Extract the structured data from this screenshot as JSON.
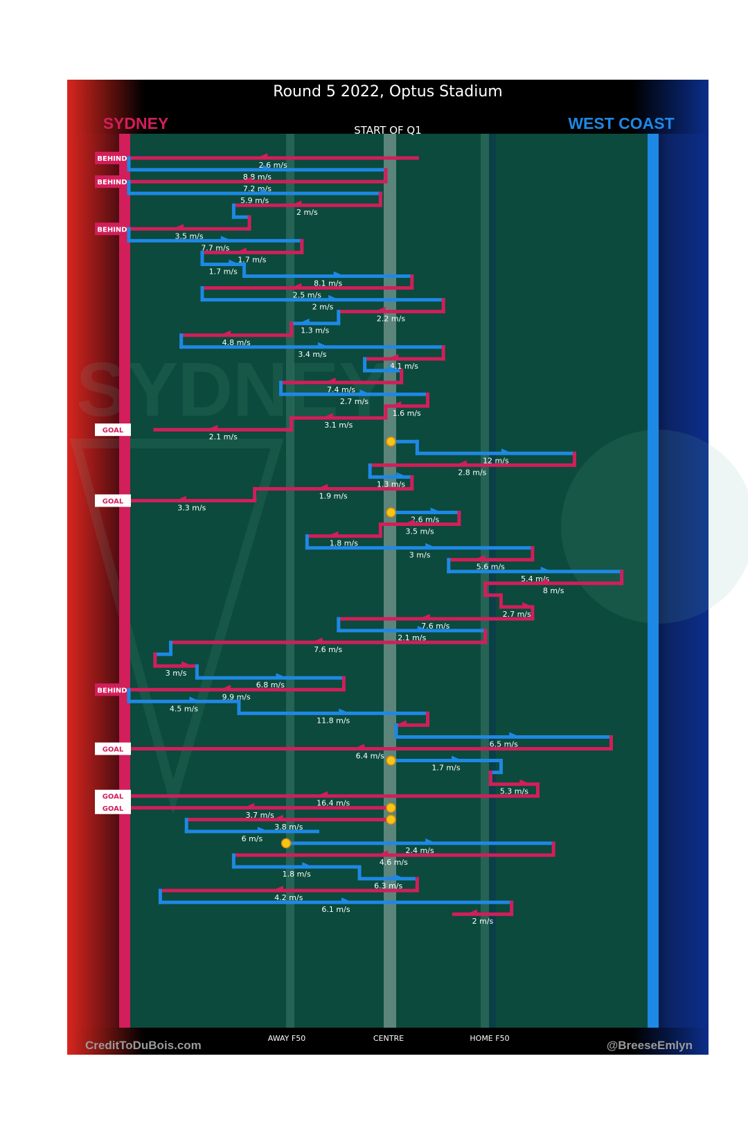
{
  "chart_data": {
    "type": "line",
    "title": "Round 5 2022, Optus Stadium",
    "subtitle": "START OF Q1",
    "teams": {
      "away": {
        "name": "SYDNEY",
        "color": "#d21e5a"
      },
      "home": {
        "name": "WEST COAST",
        "color": "#1e88e5"
      }
    },
    "axis_labels": [
      "AWAY F50",
      "CENTRE",
      "HOME F50"
    ],
    "credits": {
      "left": "CreditToDuBois.com",
      "right": "@BreeseEmlyn"
    },
    "colors": {
      "sydney": "#d21e5a",
      "westcoast": "#1e88e5",
      "field": "#0b4a3c",
      "stop": "#f5c518"
    },
    "x_domain": {
      "sydney_goal": 0,
      "west_coast_goal": 100
    },
    "chains": [
      {
        "team": "S",
        "from": 55,
        "to": 0,
        "speed": "2.6 m/s",
        "outcome": "BEHIND"
      },
      {
        "team": "W",
        "from": 0,
        "to": 49,
        "speed": "8.8 m/s"
      },
      {
        "team": "S",
        "from": 49,
        "to": 0,
        "speed": "7.2 m/s",
        "outcome": "BEHIND"
      },
      {
        "team": "W",
        "from": 0,
        "to": 48,
        "speed": "5.9 m/s"
      },
      {
        "team": "S",
        "from": 48,
        "to": 20,
        "speed": "2 m/s"
      },
      {
        "team": "W",
        "from": 20,
        "to": 23,
        "speed": ""
      },
      {
        "team": "S",
        "from": 23,
        "to": 0,
        "speed": "3.5 m/s",
        "outcome": "BEHIND"
      },
      {
        "team": "W",
        "from": 0,
        "to": 33,
        "speed": "7.7 m/s"
      },
      {
        "team": "S",
        "from": 33,
        "to": 14,
        "speed": "1.7 m/s"
      },
      {
        "team": "W",
        "from": 14,
        "to": 22,
        "speed": "1.7 m/s"
      },
      {
        "team": "W",
        "from": 22,
        "to": 54,
        "speed": "8.1 m/s"
      },
      {
        "team": "S",
        "from": 54,
        "to": 14,
        "speed": "2.5 m/s"
      },
      {
        "team": "W",
        "from": 14,
        "to": 60,
        "speed": "2 m/s"
      },
      {
        "team": "S",
        "from": 60,
        "to": 40,
        "speed": "2.2 m/s"
      },
      {
        "team": "W",
        "from": 40,
        "to": 31,
        "speed": "1.3 m/s"
      },
      {
        "team": "S",
        "from": 31,
        "to": 10,
        "speed": "4.8 m/s"
      },
      {
        "team": "W",
        "from": 10,
        "to": 60,
        "speed": "3.4 m/s"
      },
      {
        "team": "S",
        "from": 60,
        "to": 45,
        "speed": "4.1 m/s"
      },
      {
        "team": "W",
        "from": 45,
        "to": 52,
        "speed": ""
      },
      {
        "team": "S",
        "from": 52,
        "to": 29,
        "speed": "7.4 m/s"
      },
      {
        "team": "W",
        "from": 29,
        "to": 57,
        "speed": "2.7 m/s"
      },
      {
        "team": "S",
        "from": 57,
        "to": 49,
        "speed": "1.6 m/s"
      },
      {
        "team": "S",
        "from": 49,
        "to": 31,
        "speed": "3.1 m/s"
      },
      {
        "team": "S",
        "from": 31,
        "to": 5,
        "speed": "2.1 m/s",
        "outcome": "GOAL"
      },
      {
        "team": "W",
        "from": 50,
        "to": 55,
        "speed": ""
      },
      {
        "team": "W",
        "from": 55,
        "to": 85,
        "speed": "12 m/s"
      },
      {
        "team": "S",
        "from": 85,
        "to": 46,
        "speed": "2.8 m/s"
      },
      {
        "team": "W",
        "from": 46,
        "to": 54,
        "speed": "1.3 m/s"
      },
      {
        "team": "S",
        "from": 54,
        "to": 24,
        "speed": "1.9 m/s"
      },
      {
        "team": "S",
        "from": 24,
        "to": 0,
        "speed": "3.3 m/s",
        "outcome": "GOAL"
      },
      {
        "team": "W",
        "from": 50,
        "to": 63,
        "speed": "2.6 m/s"
      },
      {
        "team": "S",
        "from": 63,
        "to": 48,
        "speed": "3.5 m/s"
      },
      {
        "team": "S",
        "from": 48,
        "to": 34,
        "speed": "1.8 m/s"
      },
      {
        "team": "W",
        "from": 34,
        "to": 77,
        "speed": "3 m/s"
      },
      {
        "team": "S",
        "from": 77,
        "to": 61,
        "speed": "5.6 m/s"
      },
      {
        "team": "W",
        "from": 61,
        "to": 94,
        "speed": "5.4 m/s"
      },
      {
        "team": "S",
        "from": 94,
        "to": 68,
        "speed": "8 m/s"
      },
      {
        "team": "S",
        "from": 68,
        "to": 71,
        "speed": ""
      },
      {
        "team": "S",
        "from": 71,
        "to": 77,
        "speed": "2.7 m/s"
      },
      {
        "team": "S",
        "from": 77,
        "to": 40,
        "speed": "7.6 m/s"
      },
      {
        "team": "W",
        "from": 40,
        "to": 68,
        "speed": "2.1 m/s"
      },
      {
        "team": "S",
        "from": 68,
        "to": 8,
        "speed": "7.6 m/s"
      },
      {
        "team": "W",
        "from": 8,
        "to": 5,
        "speed": ""
      },
      {
        "team": "S",
        "from": 5,
        "to": 13,
        "speed": "3 m/s"
      },
      {
        "team": "W",
        "from": 13,
        "to": 41,
        "speed": "6.8 m/s"
      },
      {
        "team": "S",
        "from": 41,
        "to": 0,
        "speed": "9.9 m/s",
        "outcome": "BEHIND"
      },
      {
        "team": "W",
        "from": 0,
        "to": 21,
        "speed": "4.5 m/s"
      },
      {
        "team": "W",
        "from": 21,
        "to": 57,
        "speed": "11.8 m/s"
      },
      {
        "team": "S",
        "from": 57,
        "to": 51,
        "speed": ""
      },
      {
        "team": "W",
        "from": 51,
        "to": 92,
        "speed": "6.5 m/s"
      },
      {
        "team": "S",
        "from": 92,
        "to": 0,
        "speed": "6.4 m/s",
        "outcome": "GOAL"
      },
      {
        "team": "W",
        "from": 50,
        "to": 71,
        "speed": "1.7 m/s"
      },
      {
        "team": "W",
        "from": 71,
        "to": 69,
        "speed": ""
      },
      {
        "team": "S",
        "from": 69,
        "to": 78,
        "speed": "5.3 m/s"
      },
      {
        "team": "S",
        "from": 78,
        "to": 0,
        "speed": "16.4 m/s",
        "outcome": "GOAL"
      },
      {
        "team": "S",
        "from": 50,
        "to": 0,
        "speed": "3.7 m/s",
        "outcome": "GOAL"
      },
      {
        "team": "S",
        "from": 50,
        "to": 11,
        "speed": "3.8 m/s"
      },
      {
        "team": "W",
        "from": 11,
        "to": 36,
        "speed": "6 m/s"
      },
      {
        "team": "W",
        "from": 30,
        "to": 81,
        "speed": "2.4 m/s"
      },
      {
        "team": "S",
        "from": 81,
        "to": 20,
        "speed": "4.6 m/s"
      },
      {
        "team": "W",
        "from": 20,
        "to": 44,
        "speed": "1.8 m/s"
      },
      {
        "team": "W",
        "from": 44,
        "to": 55,
        "speed": "6.3 m/s"
      },
      {
        "team": "S",
        "from": 55,
        "to": 6,
        "speed": "4.2 m/s"
      },
      {
        "team": "W",
        "from": 6,
        "to": 73,
        "speed": "6.1 m/s"
      },
      {
        "team": "S",
        "from": 73,
        "to": 62,
        "speed": "2 m/s"
      }
    ]
  }
}
